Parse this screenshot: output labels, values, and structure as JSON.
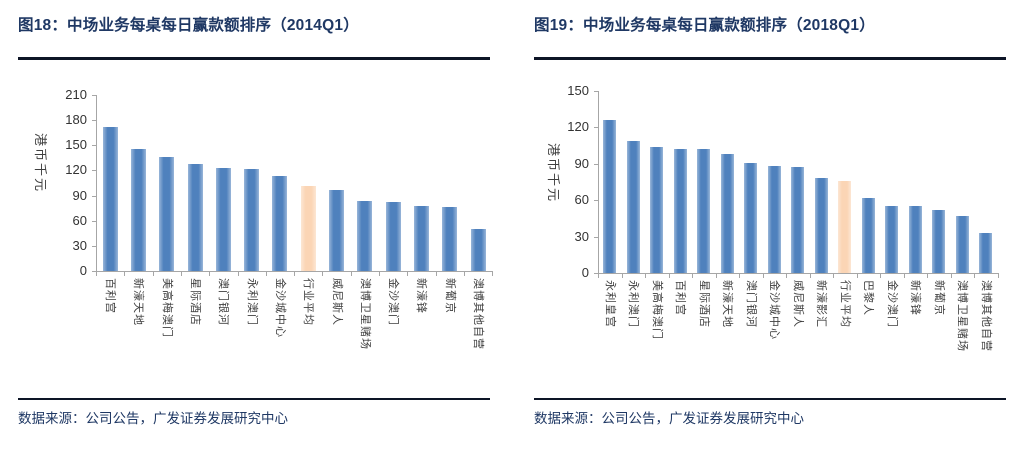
{
  "panels": [
    {
      "title": "图18：中场业务每桌每日赢款额排序（2014Q1）",
      "source": "数据来源：公司公告，广发证券发展研究中心"
    },
    {
      "title": "图19：中场业务每桌每日赢款额排序（2018Q1）",
      "source": "数据来源：公司公告，广发证券发展研究中心"
    }
  ],
  "chart_data": [
    {
      "type": "bar",
      "title": "图18：中场业务每桌每日赢款额排序（2014Q1）",
      "ylabel": "港币千元",
      "xlabel": "",
      "ylim": [
        0,
        210
      ],
      "ytick_step": 30,
      "grid": false,
      "legend": "none",
      "categories": [
        "百利宫",
        "新濠天地",
        "美高梅澳门",
        "星际酒店",
        "澳门银河",
        "永利澳门",
        "金沙城中心",
        "行业平均",
        "威尼斯人",
        "澳博卫星赌场",
        "金沙澳门",
        "新濠锋",
        "新葡京",
        "澳博其他自营"
      ],
      "values": [
        172,
        145,
        136,
        128,
        123,
        122,
        113,
        102,
        97,
        84,
        82,
        78,
        76,
        50
      ],
      "highlight_category": "行业平均",
      "bar_color": "#4F81BD",
      "highlight_color": "#FBD5B5"
    },
    {
      "type": "bar",
      "title": "图19：中场业务每桌每日赢款额排序（2018Q1）",
      "ylabel": "港币千元",
      "xlabel": "",
      "ylim": [
        0,
        150
      ],
      "ytick_step": 30,
      "grid": false,
      "legend": "none",
      "categories": [
        "永利皇宫",
        "永利澳门",
        "美高梅澳门",
        "百利宫",
        "星际酒店",
        "新濠天地",
        "澳门银河",
        "金沙城中心",
        "威尼斯人",
        "新濠影汇",
        "行业平均",
        "巴黎人",
        "金沙澳门",
        "新濠锋",
        "新葡京",
        "澳博卫星赌场",
        "澳博其他自营"
      ],
      "values": [
        126,
        109,
        104,
        102,
        102,
        98,
        91,
        88,
        87,
        78,
        76,
        62,
        55,
        55,
        52,
        47,
        33
      ],
      "highlight_category": "行业平均",
      "bar_color": "#4F81BD",
      "highlight_color": "#FBD5B5"
    }
  ]
}
